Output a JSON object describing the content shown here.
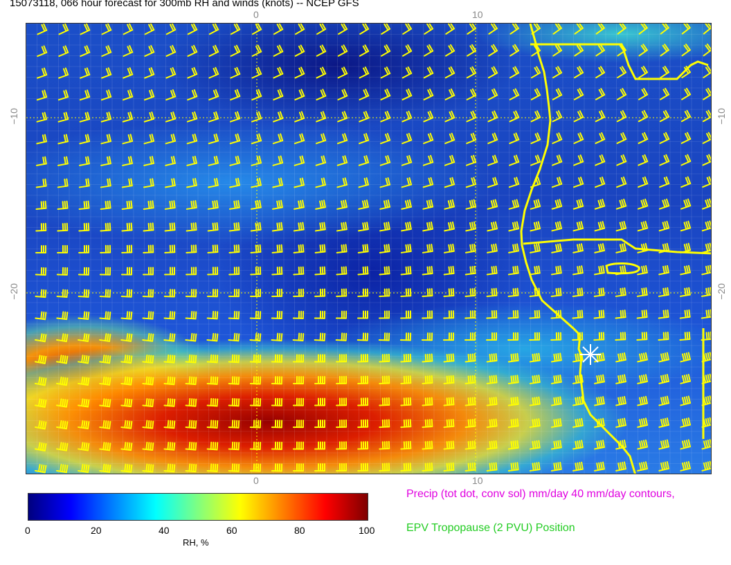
{
  "title": "15073118, 066 hour forecast for 300mb RH and winds (knots) -- NCEP GFS",
  "axes": {
    "top_ticks": [
      "0",
      "10"
    ],
    "bottom_ticks": [
      "0",
      "10"
    ],
    "left_ticks": [
      "−10",
      "−20"
    ],
    "right_ticks": [
      "−10",
      "−20"
    ]
  },
  "colorbar": {
    "title": "RH, %",
    "ticks": [
      "0",
      "20",
      "40",
      "60",
      "80",
      "100"
    ],
    "range": [
      0,
      100
    ],
    "colors": [
      "#00007f",
      "#0000ff",
      "#0080ff",
      "#00ffff",
      "#80ff80",
      "#ffff00",
      "#ff8000",
      "#ff0000",
      "#7f0000"
    ]
  },
  "legend": {
    "precip": "Precip (tot dot, conv sol) mm/day 40 mm/day contours,",
    "epv": "EPV Tropopause (2 PVU) Position"
  },
  "colors": {
    "barbs": "#ffff00",
    "coast": "#ffff00",
    "marker": "#ffffff"
  },
  "icons": {
    "marker": "asterisk-icon",
    "barb": "wind-barb-icon"
  }
}
